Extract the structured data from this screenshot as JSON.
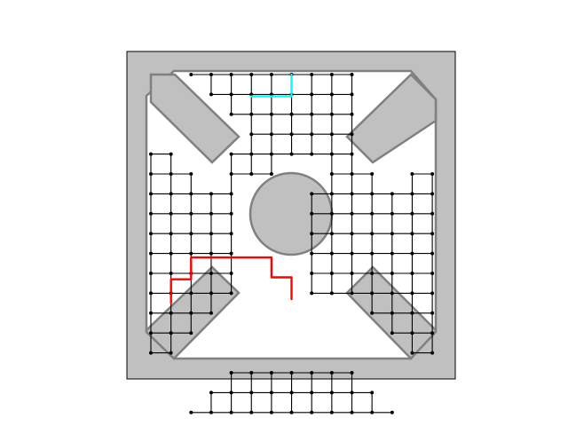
{
  "colors": {
    "background": "#ffffff",
    "obstacle_fill": "#c0c0c0",
    "obstacle_stroke": "#808080",
    "grid_edge": "#000000",
    "grid_node": "#000000",
    "path_red": "#ff0000",
    "path_cyan": "#00ffff"
  },
  "paths": [
    {
      "color": "red"
    },
    {
      "color": "cyan"
    }
  ]
}
